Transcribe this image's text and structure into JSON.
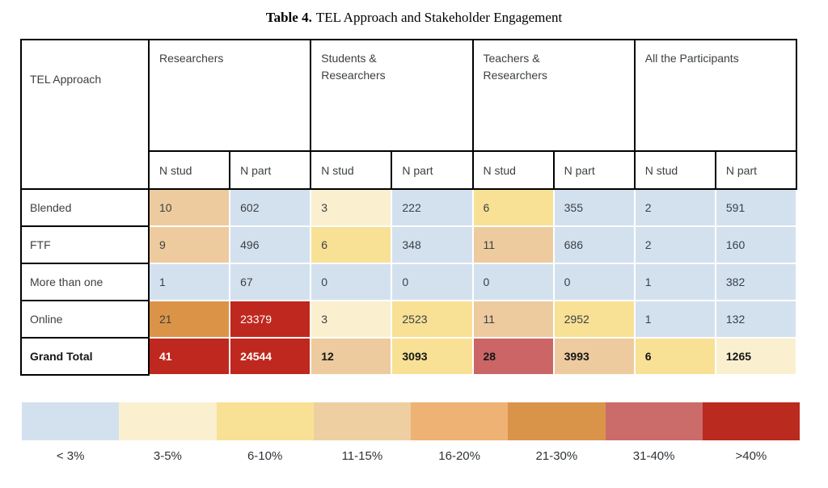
{
  "title": {
    "label": "Table 4.",
    "text": "TEL Approach and Stakeholder Engagement"
  },
  "table": {
    "corner": "TEL Approach",
    "groups": [
      "Researchers",
      "Students &\nResearchers",
      "Teachers &\nResearchers",
      "All the Participants"
    ],
    "subheaders": [
      "N stud",
      "N part",
      "N stud",
      "N part",
      "N stud",
      "N part",
      "N stud",
      "N part"
    ],
    "rows": [
      {
        "label": "Blended",
        "cells": [
          {
            "v": "10",
            "color": "#edcb9e"
          },
          {
            "v": "602",
            "color": "#d3e1ef"
          },
          {
            "v": "3",
            "color": "#faf0d0"
          },
          {
            "v": "222",
            "color": "#d3e1ef"
          },
          {
            "v": "6",
            "color": "#f8e195"
          },
          {
            "v": "355",
            "color": "#d3e1ef"
          },
          {
            "v": "2",
            "color": "#d3e1ef"
          },
          {
            "v": "591",
            "color": "#d3e1ef"
          }
        ]
      },
      {
        "label": "FTF",
        "cells": [
          {
            "v": "9",
            "color": "#edcb9e"
          },
          {
            "v": "496",
            "color": "#d3e1ef"
          },
          {
            "v": "6",
            "color": "#f8e195"
          },
          {
            "v": "348",
            "color": "#d3e1ef"
          },
          {
            "v": "11",
            "color": "#edcb9e"
          },
          {
            "v": "686",
            "color": "#d3e1ef"
          },
          {
            "v": "2",
            "color": "#d3e1ef"
          },
          {
            "v": "160",
            "color": "#d3e1ef"
          }
        ]
      },
      {
        "label": "More than one",
        "cells": [
          {
            "v": "1",
            "color": "#d3e1ef"
          },
          {
            "v": "67",
            "color": "#d3e1ef"
          },
          {
            "v": "0",
            "color": "#d3e1ef"
          },
          {
            "v": "0",
            "color": "#d3e1ef"
          },
          {
            "v": "0",
            "color": "#d3e1ef"
          },
          {
            "v": "0",
            "color": "#d3e1ef"
          },
          {
            "v": "1",
            "color": "#d3e1ef"
          },
          {
            "v": "382",
            "color": "#d3e1ef"
          }
        ]
      },
      {
        "label": "Online",
        "cells": [
          {
            "v": "21",
            "color": "#db9447"
          },
          {
            "v": "23379",
            "color": "#bf281e",
            "fg": "#ffffff"
          },
          {
            "v": "3",
            "color": "#faf0d0"
          },
          {
            "v": "2523",
            "color": "#f8e195"
          },
          {
            "v": "11",
            "color": "#edcb9e"
          },
          {
            "v": "2952",
            "color": "#f8e195"
          },
          {
            "v": "1",
            "color": "#d3e1ef"
          },
          {
            "v": "132",
            "color": "#d3e1ef"
          }
        ]
      },
      {
        "label": "Grand Total",
        "cells": [
          {
            "v": "41",
            "color": "#bf281e",
            "fg": "#ffffff"
          },
          {
            "v": "24544",
            "color": "#bf281e",
            "fg": "#ffffff"
          },
          {
            "v": "12",
            "color": "#edcb9e"
          },
          {
            "v": "3093",
            "color": "#f8e195"
          },
          {
            "v": "28",
            "color": "#cc6566"
          },
          {
            "v": "3993",
            "color": "#edcb9e"
          },
          {
            "v": "6",
            "color": "#f8e195"
          },
          {
            "v": "1265",
            "color": "#faf0d0"
          }
        ]
      }
    ]
  },
  "legend": {
    "bins": [
      {
        "label": "< 3%",
        "color": "#d3e1ef"
      },
      {
        "label": "3-5%",
        "color": "#faf0d0"
      },
      {
        "label": "6-10%",
        "color": "#f8e195"
      },
      {
        "label": "11-15%",
        "color": "#eecfa2"
      },
      {
        "label": "16-20%",
        "color": "#eeb274"
      },
      {
        "label": "21-30%",
        "color": "#d9944a"
      },
      {
        "label": "31-40%",
        "color": "#cc6c6a"
      },
      {
        "label": ">40%",
        "color": "#bb2a1f"
      }
    ]
  },
  "chart_data": {
    "type": "heatmap",
    "title": "Table 4. TEL Approach and Stakeholder Engagement",
    "row_header": "TEL Approach",
    "column_groups": [
      "Researchers",
      "Students & Researchers",
      "Teachers & Researchers",
      "All the Participants"
    ],
    "columns": [
      "Researchers N stud",
      "Researchers N part",
      "Students & Researchers N stud",
      "Students & Researchers N part",
      "Teachers & Researchers N stud",
      "Teachers & Researchers N part",
      "All the Participants N stud",
      "All the Participants N part"
    ],
    "rows": [
      "Blended",
      "FTF",
      "More than one",
      "Online",
      "Grand Total"
    ],
    "values": [
      [
        10,
        602,
        3,
        222,
        6,
        355,
        2,
        591
      ],
      [
        9,
        496,
        6,
        348,
        11,
        686,
        2,
        160
      ],
      [
        1,
        67,
        0,
        0,
        0,
        0,
        1,
        382
      ],
      [
        21,
        23379,
        3,
        2523,
        11,
        2952,
        1,
        132
      ],
      [
        41,
        24544,
        12,
        3093,
        28,
        3993,
        6,
        1265
      ]
    ],
    "legend_bins": [
      "< 3%",
      "3-5%",
      "6-10%",
      "11-15%",
      "16-20%",
      "21-30%",
      "31-40%",
      ">40%"
    ],
    "legend_position": "bottom"
  }
}
